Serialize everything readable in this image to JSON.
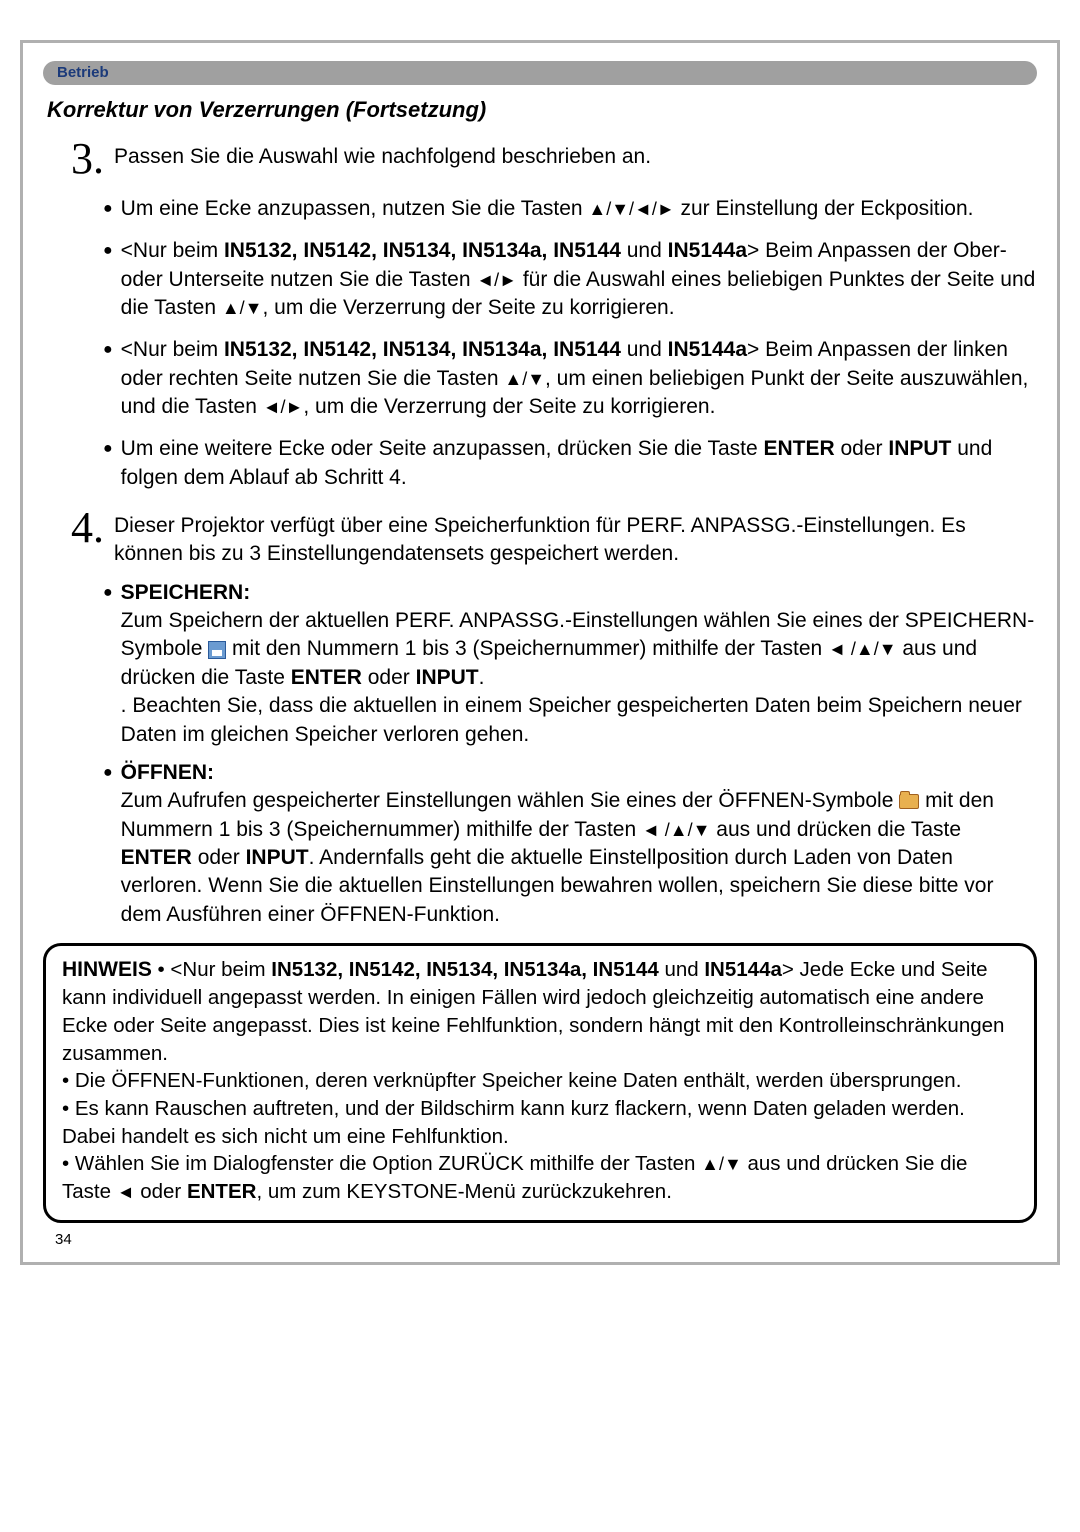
{
  "section_tag": "Betrieb",
  "title": "Korrektur von Verzerrungen (Fortsetzung)",
  "step3": {
    "num": "3.",
    "text": "Passen Sie die Auswahl wie nachfolgend beschrieben an.",
    "bullets": [
      {
        "pre": "Um eine Ecke anzupassen, nutzen Sie die Tasten ",
        "arrows": "▲/▼/◄/►",
        "post": " zur Einstellung der Eckposition."
      },
      {
        "pre": "<Nur beim ",
        "models": "IN5132, IN5142, IN5134, IN5134a, IN5144",
        "mid1": " und ",
        "models2": "IN5144a",
        "mid2": "> Beim Anpassen der Ober- oder Unterseite nutzen Sie die Tasten ",
        "arrows1": "◄/►",
        "mid3": " für die Auswahl eines beliebigen Punktes der Seite und die Tasten ",
        "arrows2": "▲/▼",
        "post": ", um die Verzerrung der Seite zu korrigieren."
      },
      {
        "pre": "<Nur beim ",
        "models": "IN5132, IN5142, IN5134, IN5134a, IN5144",
        "mid1": " und ",
        "models2": "IN5144a",
        "mid2": "> Beim Anpassen der linken oder rechten Seite nutzen Sie die Tasten ",
        "arrows1": "▲/▼",
        "mid3": ", um einen beliebigen Punkt der Seite auszuwählen, und die Tasten ",
        "arrows2": "◄/►",
        "post": ", um die Verzerrung der Seite zu korrigieren."
      },
      {
        "pre": "Um eine weitere Ecke oder Seite anzupassen, drücken Sie die Taste ",
        "key1": "ENTER",
        "mid": " oder ",
        "key2": "INPUT",
        "post": " und folgen dem Ablauf ab Schritt 4."
      }
    ]
  },
  "step4": {
    "num": "4.",
    "text": "Dieser Projektor verfügt über eine Speicherfunktion für PERF. ANPASSG.-Einstellungen. Es können bis zu 3 Einstellungendatensets gespeichert werden.",
    "speichern_label": "SPEICHERN:",
    "speichern_body1": "Zum Speichern der aktuellen PERF. ANPASSG.-Einstellungen wählen Sie eines der SPEICHERN-Symbole ",
    "speichern_body2": " mit den Nummern 1 bis 3 (Speichernummer) mithilfe der Tasten ",
    "speichern_arrows": "◄ /▲/▼",
    "speichern_body3": " aus und drücken die Taste ",
    "speichern_key1": "ENTER",
    "speichern_mid": " oder ",
    "speichern_key2": "INPUT",
    "speichern_body4": ". Beachten Sie, dass die aktuellen in einem Speicher gespeicherten Daten beim Speichern neuer Daten im gleichen Speicher verloren gehen.",
    "oeffnen_label": "ÖFFNEN:",
    "oeffnen_body1": "Zum Aufrufen gespeicherter Einstellungen wählen Sie eines der ÖFFNEN-Symbole ",
    "oeffnen_body2": " mit den Nummern 1 bis 3 (Speichernummer) mithilfe der Tasten ",
    "oeffnen_arrows": "◄ /▲/▼",
    "oeffnen_body3": " aus und drücken die Taste ",
    "oeffnen_key1": "ENTER",
    "oeffnen_mid": " oder ",
    "oeffnen_key2": "INPUT",
    "oeffnen_body4": ". Andernfalls geht die aktuelle Einstellposition durch Laden von Daten verloren. Wenn Sie die aktuellen Einstellungen bewahren wollen, speichern Sie diese bitte vor dem Ausführen einer ÖFFNEN-Funktion."
  },
  "hinweis": {
    "label": "HINWEIS",
    "l1a": " • <Nur beim ",
    "l1models": "IN5132, IN5142, IN5134, IN5134a, IN5144",
    "l1mid": " und ",
    "l1models2": "IN5144a",
    "l1b": "> Jede Ecke und Seite kann individuell angepasst werden. In einigen Fällen wird jedoch gleichzeitig automatisch eine andere Ecke oder Seite angepasst. Dies ist keine Fehlfunktion, sondern hängt mit den Kontrolleinschränkungen zusammen.",
    "l2": "• Die ÖFFNEN-Funktionen, deren verknüpfter Speicher keine Daten enthält, werden übersprungen.",
    "l3": "• Es kann Rauschen auftreten, und der Bildschirm kann kurz flackern, wenn Daten geladen werden. Dabei handelt es sich nicht um eine Fehlfunktion.",
    "l4a": "• Wählen Sie im Dialogfenster die Option ZURÜCK mithilfe der Tasten ",
    "l4arrows": "▲/▼",
    "l4b": " aus und drücken Sie die Taste ",
    "l4arrow2": "◄",
    "l4c": " oder ",
    "l4key": "ENTER",
    "l4d": ", um zum KEYSTONE-Menü zurückzukehren."
  },
  "page_number": "34"
}
